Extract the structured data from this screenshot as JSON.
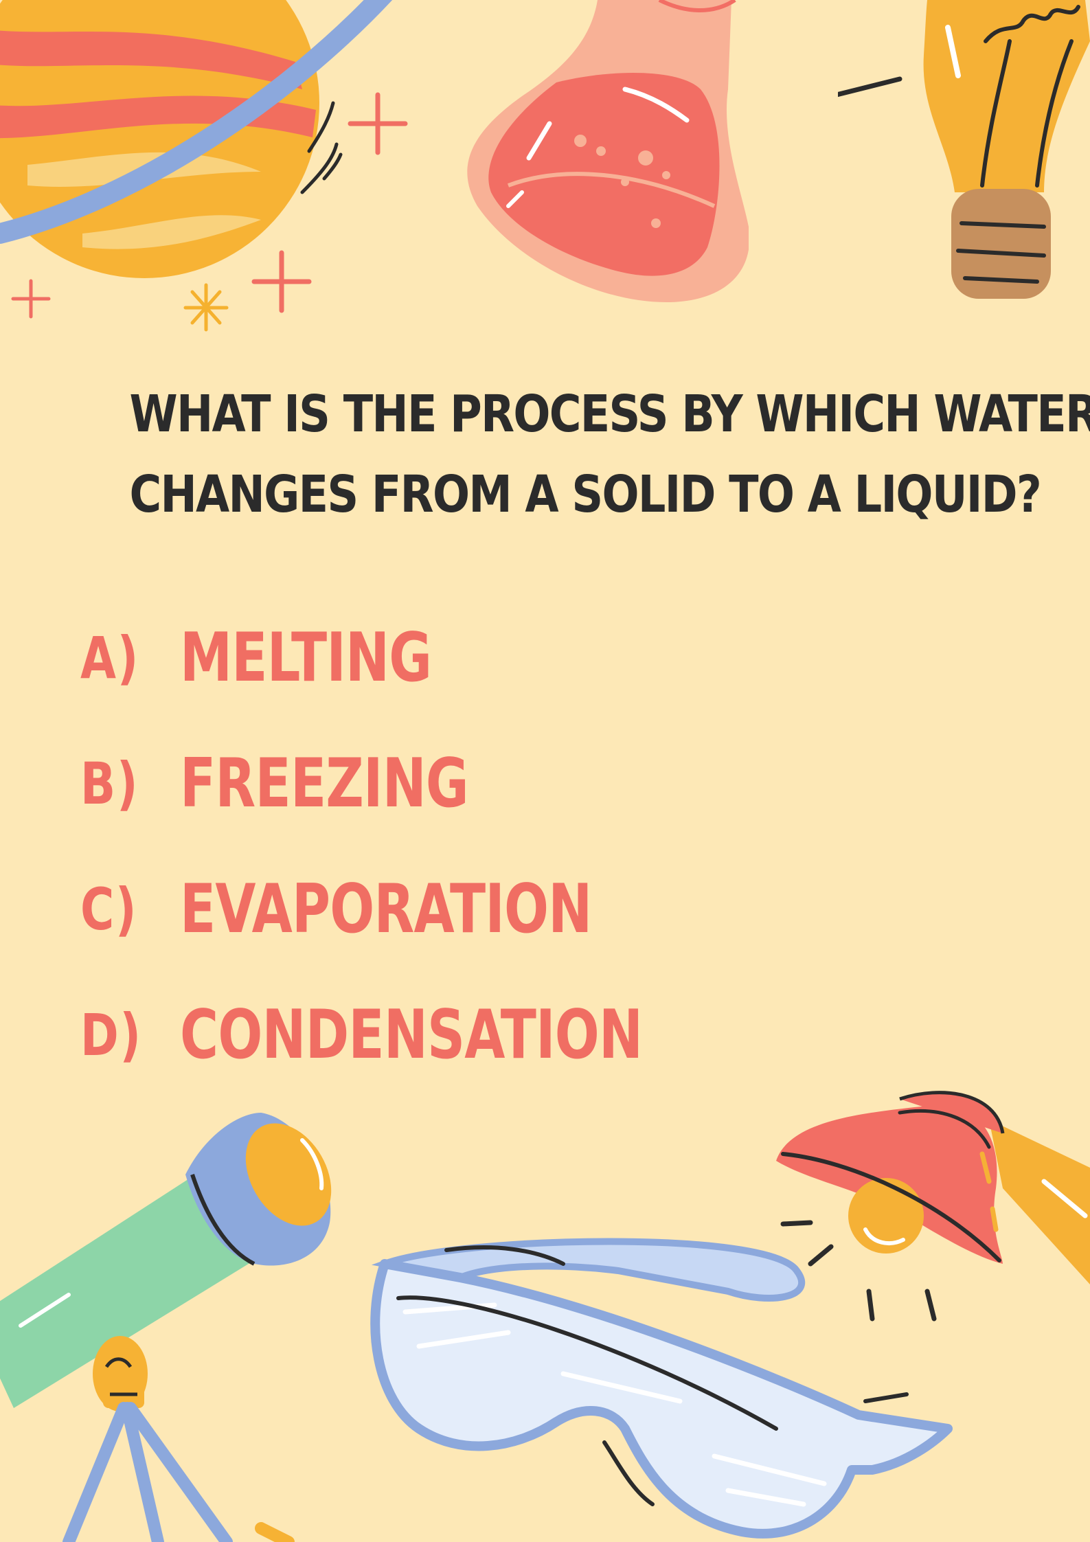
{
  "question": {
    "line1": "WHAT IS THE PROCESS BY WHICH WATER",
    "line2": "CHANGES FROM A SOLID TO A LIQUID?"
  },
  "options": [
    {
      "letter": "A)",
      "text": "MELTING"
    },
    {
      "letter": "B)",
      "text": "FREEZING"
    },
    {
      "letter": "C)",
      "text": "EVAPORATION"
    },
    {
      "letter": "D)",
      "text": "CONDENSATION"
    }
  ],
  "colors": {
    "background": "#FDE8B6",
    "question_text": "#2B2B2B",
    "option_text": "#F06E63"
  },
  "illustrations": [
    "planet-icon",
    "flask-icon",
    "lightbulb-icon",
    "telescope-icon",
    "goggles-icon",
    "lamp-icon",
    "sparkle-icon"
  ]
}
